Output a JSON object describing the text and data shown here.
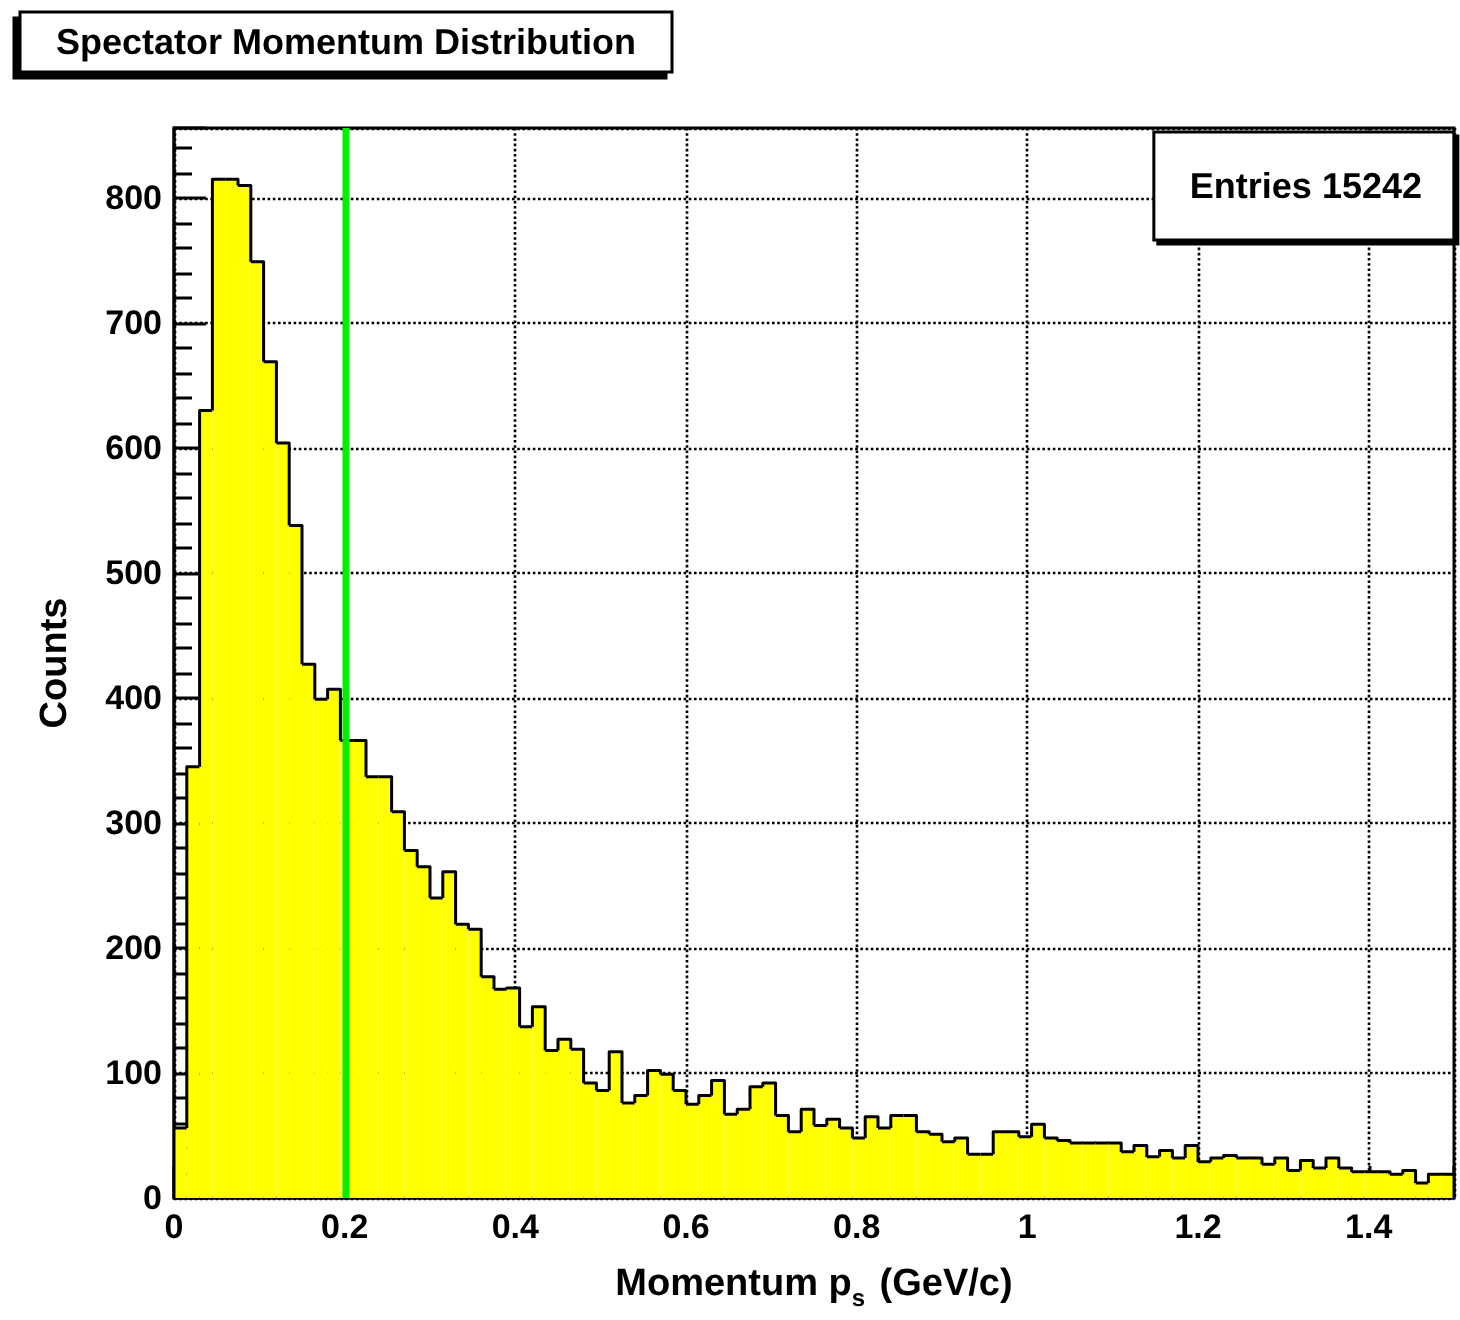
{
  "chart_data": {
    "type": "histogram",
    "title": "Spectator Momentum Distribution",
    "xlabel": "Momentum p$_{s}$ (GeV/c)",
    "ylabel": "Counts",
    "annotations": [
      "Entries 15242"
    ],
    "bins": [
      0,
      0.015,
      0.03,
      0.045,
      0.06,
      0.075,
      0.09,
      0.105,
      0.12,
      0.135,
      0.15,
      0.165,
      0.18,
      0.195,
      0.21,
      0.225,
      0.24,
      0.255,
      0.27,
      0.285,
      0.3,
      0.315,
      0.33,
      0.345,
      0.36,
      0.375,
      0.39,
      0.405,
      0.42,
      0.435,
      0.45,
      0.465,
      0.48,
      0.495,
      0.51,
      0.525,
      0.54,
      0.555,
      0.57,
      0.585,
      0.6,
      0.615,
      0.63,
      0.645,
      0.66,
      0.675,
      0.69,
      0.705,
      0.72,
      0.735,
      0.75,
      0.765,
      0.78,
      0.795,
      0.81,
      0.825,
      0.84,
      0.855,
      0.87,
      0.885,
      0.9,
      0.915,
      0.93,
      0.945,
      0.96,
      0.975,
      0.99,
      1.005,
      1.02,
      1.035,
      1.05,
      1.065,
      1.08,
      1.095,
      1.11,
      1.125,
      1.14,
      1.155,
      1.17,
      1.185,
      1.2,
      1.215,
      1.23,
      1.245,
      1.26,
      1.275,
      1.29,
      1.305,
      1.32,
      1.335,
      1.35,
      1.365,
      1.38,
      1.395,
      1.41,
      1.425,
      1.44,
      1.455,
      1.47,
      1.485,
      1.5
    ],
    "values": [
      56,
      345,
      630,
      815,
      815,
      810,
      749,
      669,
      604,
      538,
      427,
      399,
      407,
      366,
      366,
      337,
      337,
      309,
      278,
      265,
      240,
      261,
      219,
      215,
      177,
      167,
      168,
      137,
      153,
      118,
      127,
      119,
      92,
      86,
      117,
      76,
      82,
      102,
      99,
      86,
      75,
      82,
      94,
      67,
      71,
      89,
      92,
      66,
      53,
      71,
      58,
      63,
      56,
      48,
      65,
      56,
      66,
      66,
      53,
      51,
      45,
      48,
      35,
      35,
      53,
      53,
      49,
      59,
      48,
      46,
      44,
      44,
      44,
      44,
      37,
      42,
      33,
      38,
      32,
      42,
      29,
      32,
      34,
      32,
      32,
      27,
      32,
      22,
      30,
      24,
      32,
      24,
      21,
      21,
      21,
      19,
      22,
      12,
      19,
      19
    ],
    "color": "#ffff00",
    "xlim": [
      0,
      1.5
    ],
    "xticks": [
      0,
      0.2,
      0.4,
      0.6,
      0.8,
      1,
      1.2,
      1.4
    ],
    "ylim": [
      0,
      856
    ],
    "yticks": [
      0,
      100,
      200,
      300,
      400,
      500,
      600,
      700,
      800
    ],
    "grid": true,
    "ref_lines": [
      {
        "axis": "x",
        "value": 0.2,
        "color": "#00ee00"
      }
    ]
  }
}
